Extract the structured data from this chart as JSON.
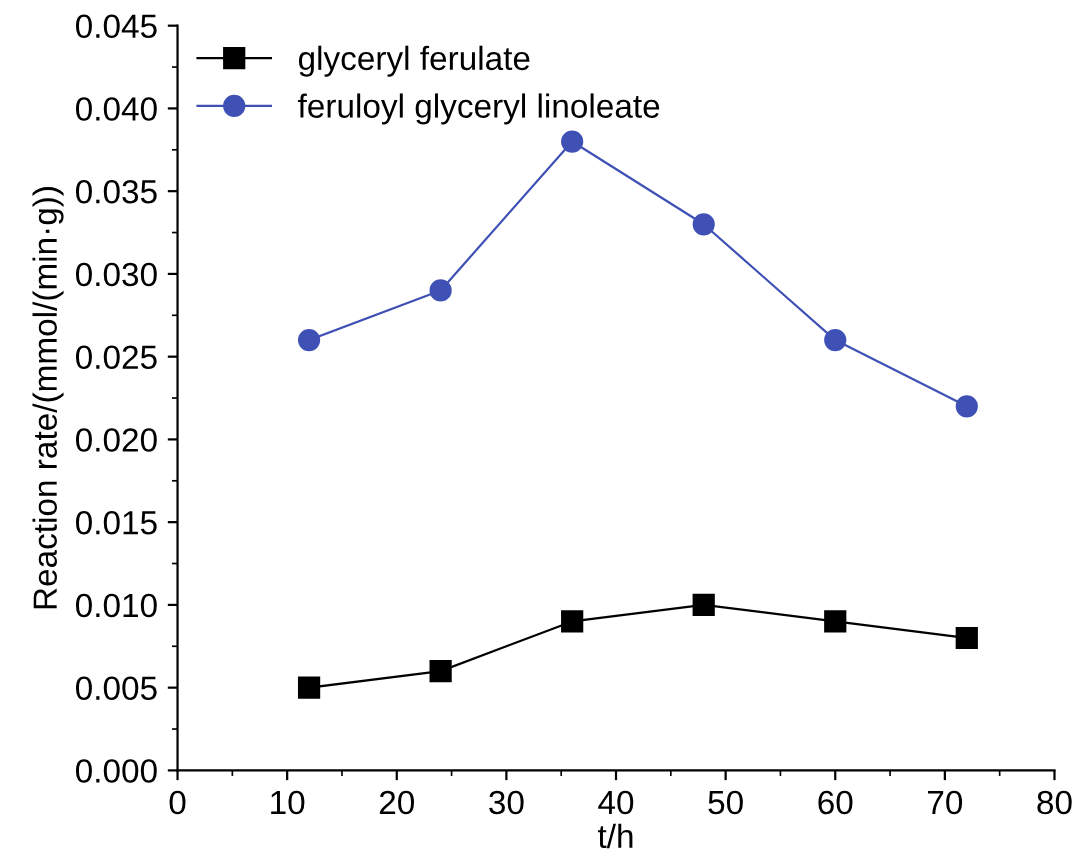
{
  "chart_data": {
    "type": "line",
    "xlabel": "t/h",
    "ylabel": "Reaction rate/(mmol/(min·g))",
    "x": [
      12,
      24,
      36,
      48,
      60,
      72
    ],
    "series": [
      {
        "name": "glyceryl ferulate",
        "color": "#000000",
        "marker": "square",
        "values": [
          0.005,
          0.006,
          0.009,
          0.01,
          0.009,
          0.008
        ]
      },
      {
        "name": "feruloyl glyceryl linoleate",
        "color": "#3f51b5",
        "marker": "circle",
        "values": [
          0.026,
          0.029,
          0.038,
          0.033,
          0.026,
          0.022
        ]
      }
    ],
    "xlim": [
      0,
      80
    ],
    "xticks": [
      0,
      10,
      20,
      30,
      40,
      50,
      60,
      70,
      80
    ],
    "ylim": [
      0,
      0.045
    ],
    "yticks": [
      {
        "value": 0,
        "label": "0.000"
      },
      {
        "value": 0.005,
        "label": "0.005"
      },
      {
        "value": 0.01,
        "label": "0.010"
      },
      {
        "value": 0.015,
        "label": "0.015"
      },
      {
        "value": 0.02,
        "label": "0.020"
      },
      {
        "value": 0.025,
        "label": "0.025"
      },
      {
        "value": 0.03,
        "label": "0.030"
      },
      {
        "value": 0.035,
        "label": "0.035"
      },
      {
        "value": 0.04,
        "label": "0.040"
      },
      {
        "value": 0.045,
        "label": "0.045"
      }
    ],
    "grid": false,
    "legend": "top left",
    "line_style": "solid"
  }
}
